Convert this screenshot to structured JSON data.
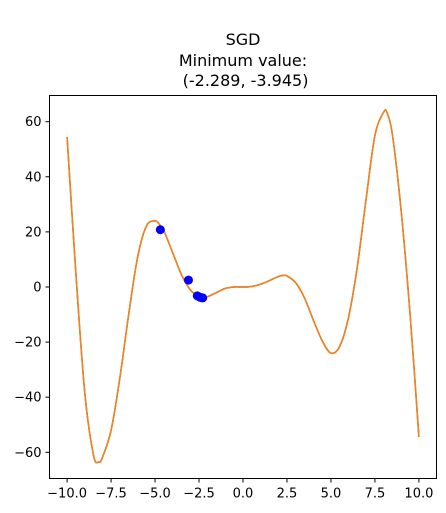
{
  "chart_data": {
    "type": "line",
    "title_lines": [
      "SGD",
      "Minimum value:",
      " (-2.289, -3.945)"
    ],
    "xlabel": "",
    "ylabel": "",
    "xlim": [
      -11.0,
      11.0
    ],
    "ylim": [
      -69.5,
      69.5
    ],
    "grid": false,
    "x_ticks": [
      -10.0,
      -7.5,
      -5.0,
      -2.5,
      0.0,
      2.5,
      5.0,
      7.5,
      10.0
    ],
    "x_tick_labels": [
      "−10.0",
      "−7.5",
      "−5.0",
      "−2.5",
      "0.0",
      "2.5",
      "5.0",
      "7.5",
      "10.0"
    ],
    "y_ticks": [
      60,
      40,
      20,
      0,
      -20,
      -40,
      -60
    ],
    "y_tick_labels": [
      "60",
      "40",
      "20",
      "0",
      "−20",
      "−40",
      "−60"
    ],
    "series": [
      {
        "kind": "line",
        "color": "#1f77b4",
        "x": [
          -10.0,
          -9.5,
          -9.0,
          -8.5,
          -8.2,
          -8.0,
          -7.5,
          -7.0,
          -6.5,
          -6.0,
          -5.5,
          -5.0,
          -4.7,
          -4.5,
          -4.0,
          -3.5,
          -3.0,
          -2.5,
          -2.289,
          -2.0,
          -1.5,
          -1.0,
          -0.5,
          0.0,
          0.5,
          1.0,
          1.5,
          2.0,
          2.3,
          2.5,
          3.0,
          3.5,
          4.0,
          4.5,
          5.0,
          5.5,
          6.0,
          6.5,
          7.0,
          7.5,
          8.0,
          8.2,
          8.5,
          9.0,
          9.5,
          10.0
        ],
        "y": [
          54.4,
          5.0,
          -38.0,
          -61.0,
          -63.5,
          -62.0,
          -52.0,
          -33.0,
          -10.0,
          10.5,
          22.0,
          24.0,
          22.3,
          20.5,
          12.5,
          4.5,
          -1.0,
          -3.6,
          -3.945,
          -3.5,
          -2.0,
          -0.5,
          0.0,
          0.0,
          0.2,
          1.0,
          2.3,
          3.8,
          4.2,
          4.0,
          1.5,
          -4.0,
          -12.0,
          -19.5,
          -24.0,
          -21.5,
          -11.0,
          7.5,
          32.0,
          55.0,
          63.5,
          63.0,
          55.0,
          27.0,
          -10.0,
          -54.4
        ]
      },
      {
        "kind": "line",
        "color": "#ff7f0e",
        "x": [
          -10.0,
          -9.5,
          -9.0,
          -8.5,
          -8.2,
          -8.0,
          -7.5,
          -7.0,
          -6.5,
          -6.0,
          -5.5,
          -5.0,
          -4.7,
          -4.5,
          -4.0,
          -3.5,
          -3.0,
          -2.5,
          -2.289,
          -2.0,
          -1.5,
          -1.0,
          -0.5,
          0.0,
          0.5,
          1.0,
          1.5,
          2.0,
          2.3,
          2.5,
          3.0,
          3.5,
          4.0,
          4.5,
          5.0,
          5.5,
          6.0,
          6.5,
          7.0,
          7.5,
          8.0,
          8.2,
          8.5,
          9.0,
          9.5,
          10.0
        ],
        "y": [
          54.4,
          5.0,
          -38.0,
          -61.0,
          -63.5,
          -62.0,
          -52.0,
          -33.0,
          -10.0,
          10.5,
          22.0,
          24.0,
          22.3,
          20.5,
          12.5,
          4.5,
          -1.0,
          -3.6,
          -3.945,
          -3.5,
          -2.0,
          -0.5,
          0.0,
          0.0,
          0.2,
          1.0,
          2.3,
          3.8,
          4.2,
          4.0,
          1.5,
          -4.0,
          -12.0,
          -19.5,
          -24.0,
          -21.5,
          -11.0,
          7.5,
          32.0,
          55.0,
          63.5,
          63.0,
          55.0,
          27.0,
          -10.0,
          -54.4
        ]
      },
      {
        "kind": "scatter",
        "color": "#0000ff",
        "x": [
          -4.7,
          -3.1,
          -2.6,
          -2.45,
          -2.35,
          -2.289
        ],
        "y": [
          20.8,
          2.5,
          -3.2,
          -3.7,
          -3.9,
          -3.945
        ]
      }
    ]
  }
}
